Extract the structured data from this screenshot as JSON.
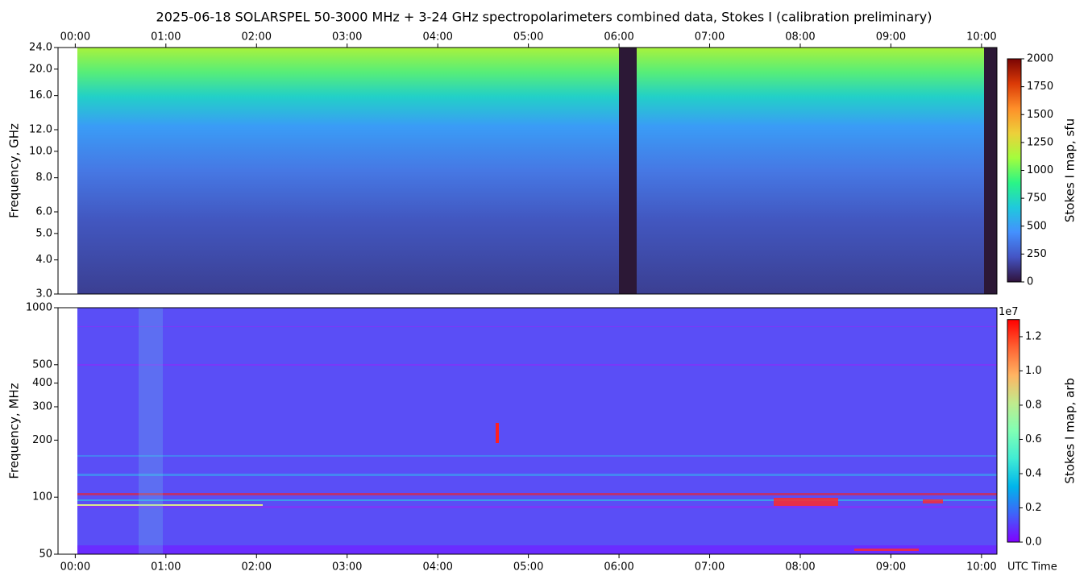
{
  "title": "2025-06-18  SOLARSPEL  50-3000 MHz  +  3-24 GHz  spectropolarimeters combined data,  Stokes I  (calibration preliminary)",
  "chart_data": [
    {
      "type": "spectrogram",
      "ylabel": "Frequency, GHz",
      "yscale": "log",
      "ylim": [
        3,
        24
      ],
      "yticks": [
        {
          "value": 3,
          "label": "3.0"
        },
        {
          "value": 4,
          "label": "4.0"
        },
        {
          "value": 5,
          "label": "5.0"
        },
        {
          "value": 6,
          "label": "6.0"
        },
        {
          "value": 8,
          "label": "8.0"
        },
        {
          "value": 10,
          "label": "10.0"
        },
        {
          "value": 12,
          "label": "12.0"
        },
        {
          "value": 16,
          "label": "16.0"
        },
        {
          "value": 20,
          "label": "20.0"
        },
        {
          "value": 24,
          "label": "24.0"
        }
      ],
      "xlim": [
        -0.19,
        10.17
      ],
      "xtick_labels": "top",
      "xticks": [
        {
          "value": 0,
          "label": "00:00"
        },
        {
          "value": 1,
          "label": "01:00"
        },
        {
          "value": 2,
          "label": "02:00"
        },
        {
          "value": 3,
          "label": "03:00"
        },
        {
          "value": 4,
          "label": "04:00"
        },
        {
          "value": 5,
          "label": "05:00"
        },
        {
          "value": 6,
          "label": "06:00"
        },
        {
          "value": 7,
          "label": "07:00"
        },
        {
          "value": 8,
          "label": "08:00"
        },
        {
          "value": 9,
          "label": "09:00"
        },
        {
          "value": 10,
          "label": "10:00"
        }
      ],
      "colorbar": {
        "label": "Stokes I map, sfu",
        "lim": [
          0,
          2000
        ],
        "ticks": [
          0,
          250,
          500,
          750,
          1000,
          1250,
          1500,
          1750,
          2000
        ],
        "colormap": [
          "#30123b",
          "#4454c4",
          "#4490fe",
          "#1fc9dd",
          "#2af586",
          "#a3fd3d",
          "#edd03a",
          "#fe8f29",
          "#db3a07",
          "#7a0403"
        ]
      }
    },
    {
      "type": "spectrogram",
      "ylabel": "Frequency, MHz",
      "xlabel": "UTC Time",
      "yscale": "log",
      "ylim": [
        50,
        1000
      ],
      "yticks": [
        50,
        100,
        200,
        300,
        400,
        500,
        1000
      ],
      "xlim": [
        -0.19,
        10.17
      ],
      "xtick_labels": "bottom",
      "xticks": [
        {
          "value": 0,
          "label": "00:00"
        },
        {
          "value": 1,
          "label": "01:00"
        },
        {
          "value": 2,
          "label": "02:00"
        },
        {
          "value": 3,
          "label": "03:00"
        },
        {
          "value": 4,
          "label": "04:00"
        },
        {
          "value": 5,
          "label": "05:00"
        },
        {
          "value": 6,
          "label": "06:00"
        },
        {
          "value": 7,
          "label": "07:00"
        },
        {
          "value": 8,
          "label": "08:00"
        },
        {
          "value": 9,
          "label": "09:00"
        },
        {
          "value": 10,
          "label": "10:00"
        }
      ],
      "colorbar": {
        "label": "Stokes I map, arb",
        "offset_label": "1e7",
        "lim": [
          0,
          1.3
        ],
        "ticks": [
          {
            "value": 0,
            "label": "0.0"
          },
          {
            "value": 0.2,
            "label": "0.2"
          },
          {
            "value": 0.4,
            "label": "0.4"
          },
          {
            "value": 0.6,
            "label": "0.6"
          },
          {
            "value": 0.8,
            "label": "0.8"
          },
          {
            "value": 1,
            "label": "1.0"
          },
          {
            "value": 1.2,
            "label": "1.2"
          }
        ],
        "colormap": [
          "#8000ff",
          "#4062fa",
          "#00b5eb",
          "#40ecd4",
          "#80ffb4",
          "#c0eb8d",
          "#ffb462",
          "#ff6232",
          "#ff0000"
        ]
      }
    }
  ]
}
